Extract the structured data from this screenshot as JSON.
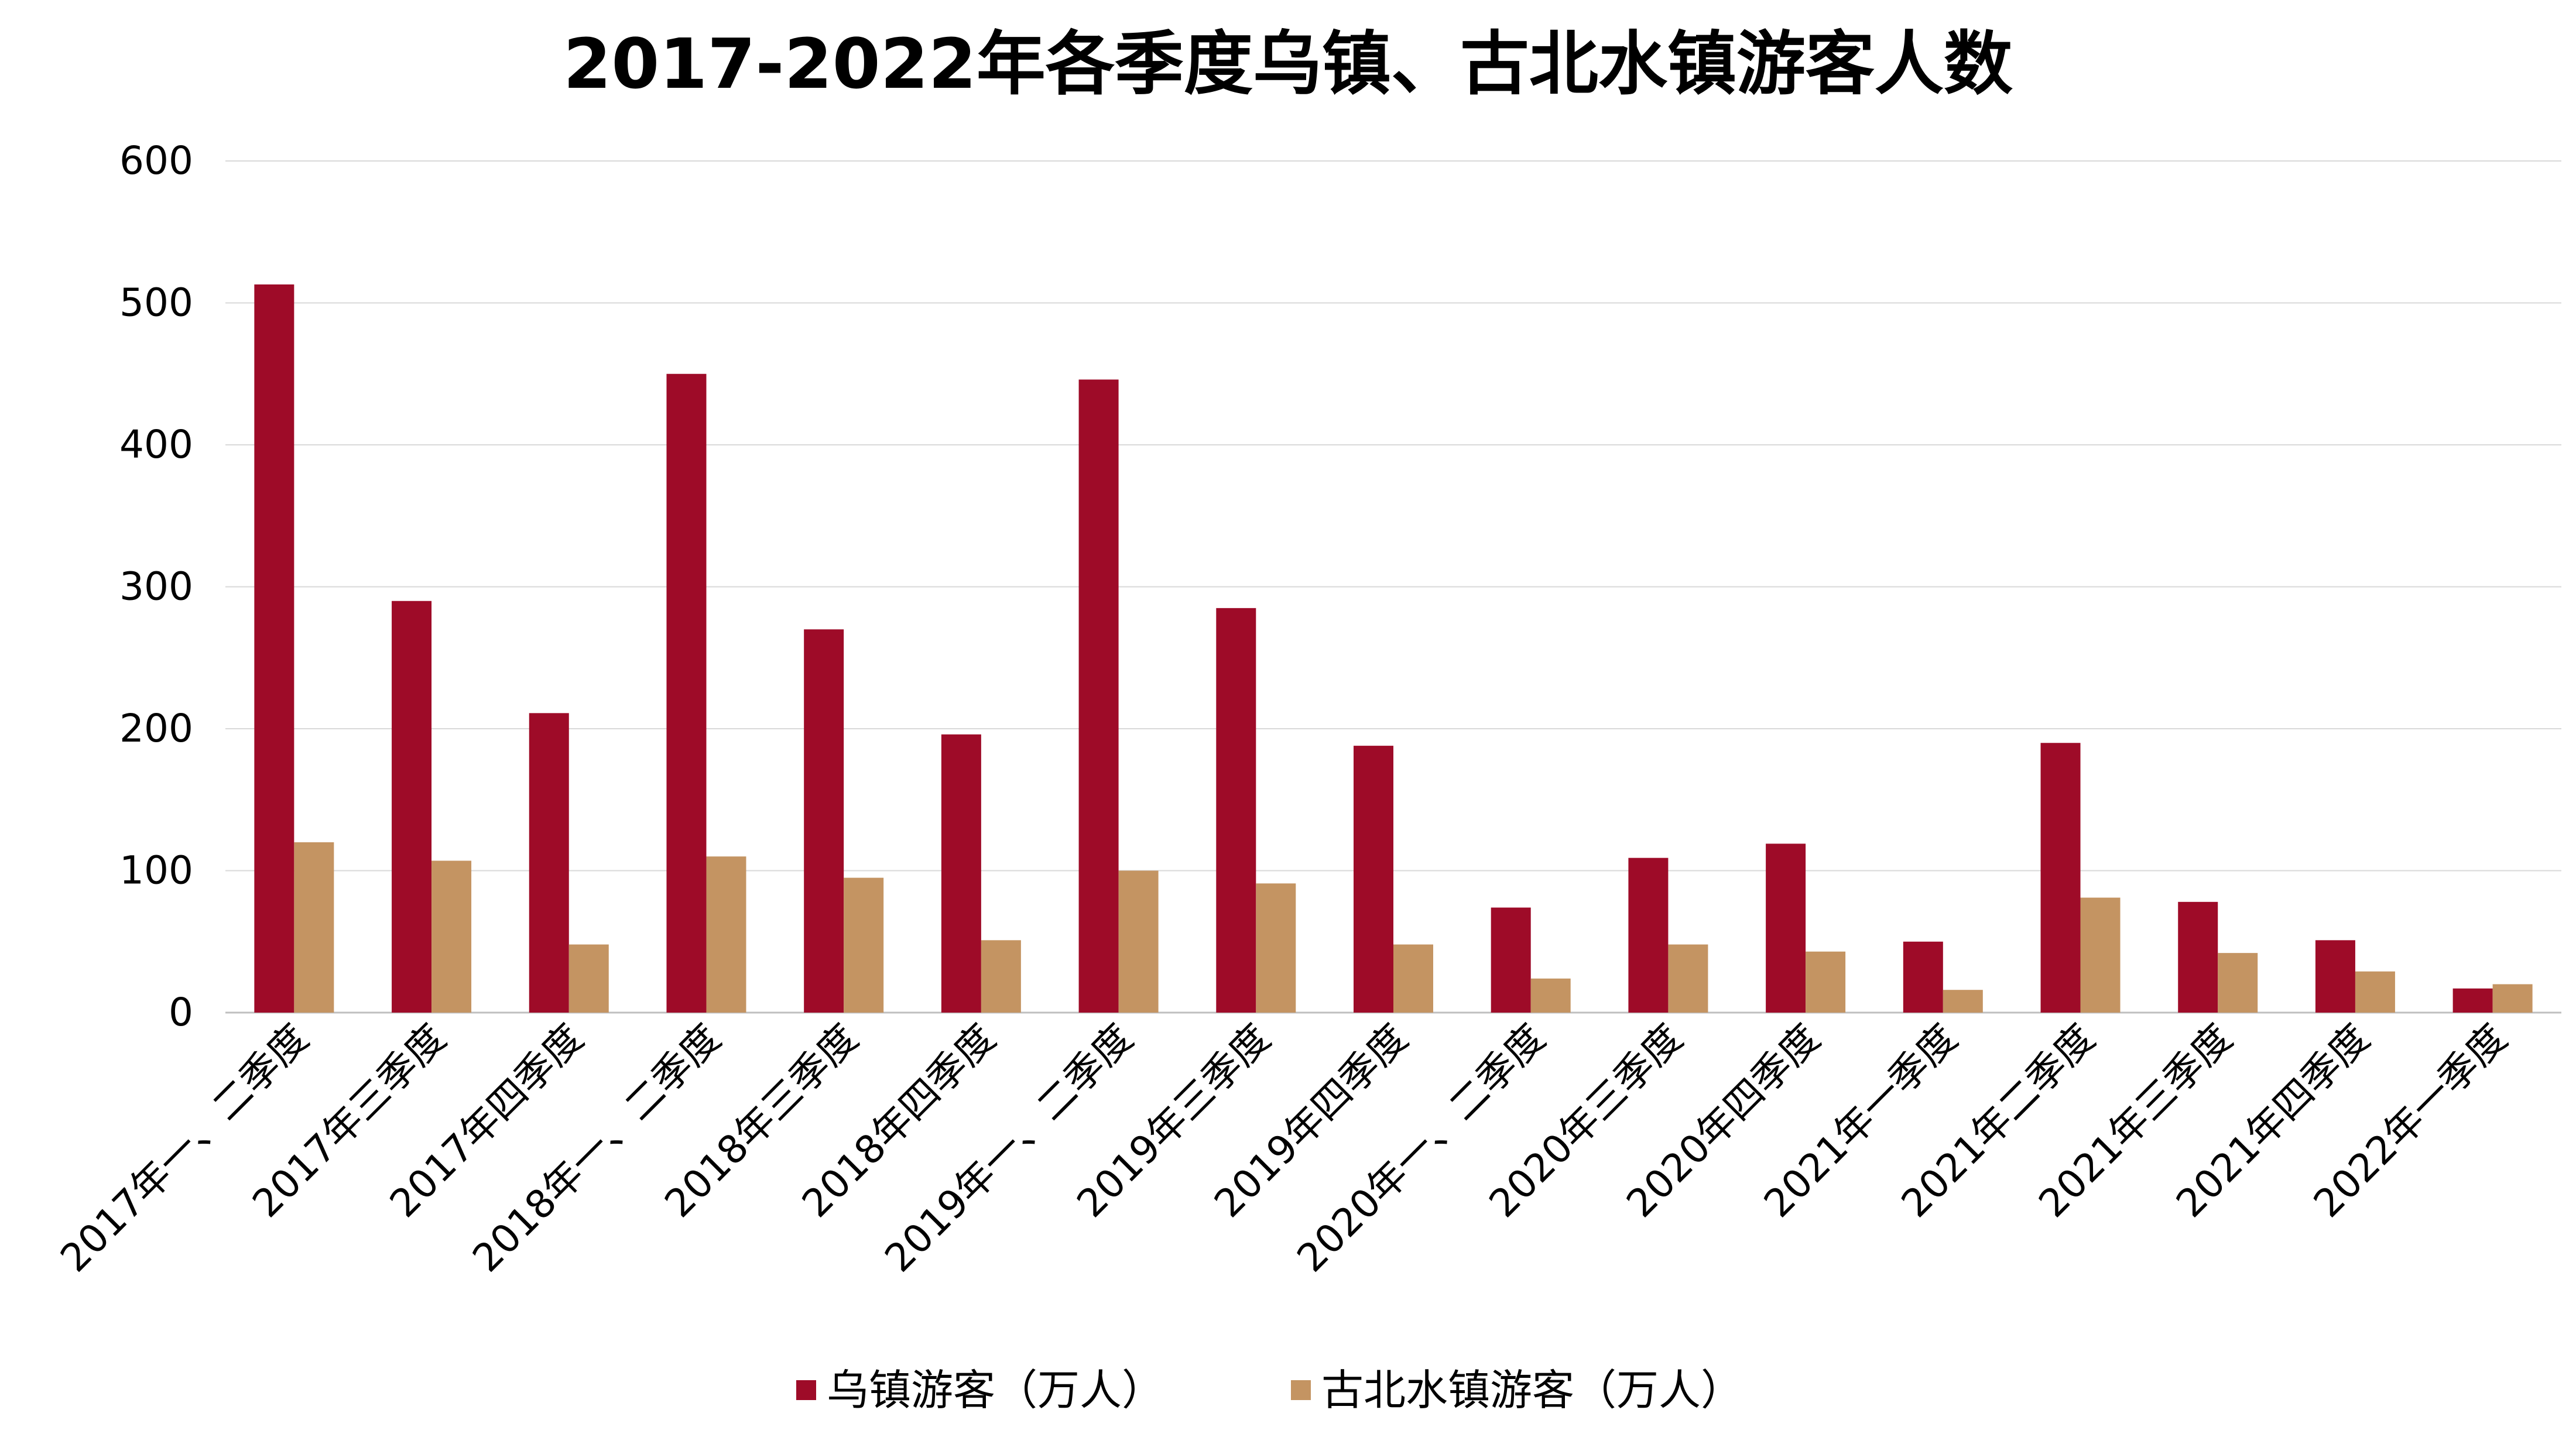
{
  "chart_data": {
    "type": "bar",
    "title": "2017-2022年各季度乌镇、古北水镇游客人数",
    "xlabel": "",
    "ylabel": "",
    "ylim": [
      0,
      600
    ],
    "yticks": [
      0,
      100,
      200,
      300,
      400,
      500,
      600
    ],
    "grid": true,
    "legend_position": "bottom",
    "categories": [
      "2017年一、二季度",
      "2017年三季度",
      "2017年四季度",
      "2018年一、二季度",
      "2018年三季度",
      "2018年四季度",
      "2019年一、二季度",
      "2019年三季度",
      "2019年四季度",
      "2020年一、二季度",
      "2020年三季度",
      "2020年四季度",
      "2021年一季度",
      "2021年二季度",
      "2021年三季度",
      "2021年四季度",
      "2022年一季度"
    ],
    "series": [
      {
        "name": "乌镇游客（万人）",
        "color": "#9E0B28",
        "values": [
          513,
          290,
          211,
          450,
          270,
          196,
          446,
          285,
          188,
          74,
          109,
          119,
          50,
          190,
          78,
          51,
          17
        ]
      },
      {
        "name": "古北水镇游客（万人）",
        "color": "#C49462",
        "values": [
          120,
          107,
          48,
          110,
          95,
          51,
          100,
          91,
          48,
          24,
          48,
          43,
          16,
          81,
          42,
          29,
          20
        ]
      }
    ]
  }
}
